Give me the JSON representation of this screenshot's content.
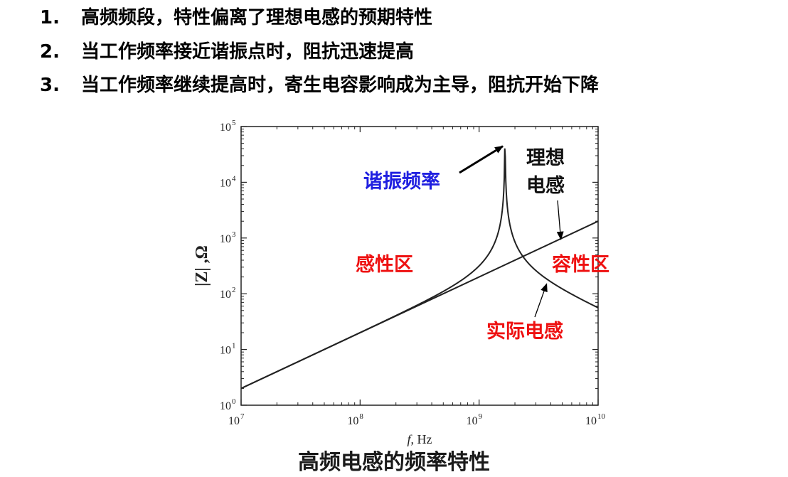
{
  "points": [
    {
      "num": "1.",
      "text": "高频频段，特性偏离了理想电感的预期特性"
    },
    {
      "num": "2.",
      "text": "当工作频率接近谐振点时，阻抗迅速提高"
    },
    {
      "num": "3.",
      "text": "当工作频率继续提高时，寄生电容影响成为主导，阻抗开始下降"
    }
  ],
  "caption": "高频电感的频率特性",
  "colors": {
    "resonance": "#1f1fe0",
    "region": "#ee1111",
    "curve": "#222222"
  },
  "chart_data": {
    "type": "line",
    "xscale": "log",
    "yscale": "log",
    "xlim": [
      10000000,
      10000000000
    ],
    "ylim": [
      1,
      100000
    ],
    "x_ticks": [
      {
        "base": "10",
        "exp": "7",
        "value": 10000000
      },
      {
        "base": "10",
        "exp": "8",
        "value": 100000000
      },
      {
        "base": "10",
        "exp": "9",
        "value": 1000000000
      },
      {
        "base": "10",
        "exp": "10",
        "value": 10000000000
      }
    ],
    "y_ticks": [
      {
        "base": "10",
        "exp": "0",
        "value": 1
      },
      {
        "base": "10",
        "exp": "1",
        "value": 10
      },
      {
        "base": "10",
        "exp": "2",
        "value": 100
      },
      {
        "base": "10",
        "exp": "3",
        "value": 1000
      },
      {
        "base": "10",
        "exp": "4",
        "value": 10000
      },
      {
        "base": "10",
        "exp": "5",
        "value": 100000
      }
    ],
    "xlabel_italic": "f",
    "xlabel_rest": ", Hz",
    "ylabel": "|Z| ,Ω",
    "series": [
      {
        "name": "理想电感",
        "x": [
          10000000,
          10000000000
        ],
        "y": [
          2,
          2000
        ]
      },
      {
        "name": "实际电感",
        "model": "parallel-LC",
        "L_ohm_per_hz": 2e-07,
        "resonance_hz": 1650000000,
        "peak_ohm": 50000
      }
    ],
    "annotations": {
      "resonance": {
        "text": "谐振频率",
        "x": 1650000000,
        "y": 50000
      },
      "ideal_line1": "理想",
      "ideal_line2": "电感",
      "ideal_target": {
        "x": 5000000000,
        "y": 1000
      },
      "inductive": "感性区",
      "capacitive": "容性区",
      "real": {
        "text": "实际电感",
        "x": 3800000000,
        "y": 160
      }
    }
  }
}
